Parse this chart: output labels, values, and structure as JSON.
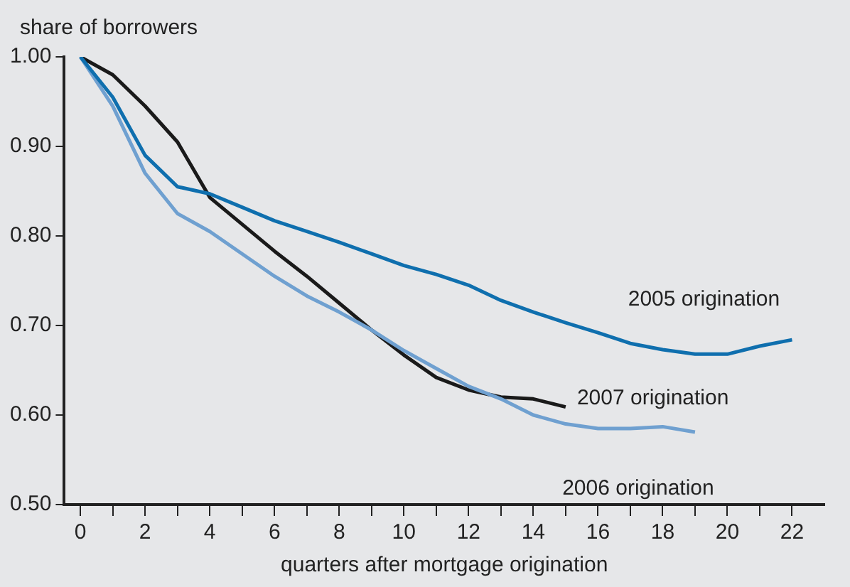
{
  "chart_data": {
    "type": "line",
    "ylabel": "share of borrowers",
    "xlabel": "quarters after mortgage origination",
    "xlim": [
      -0.5,
      23
    ],
    "ylim": [
      0.5,
      1.0
    ],
    "xticks": [
      0,
      {
        "value": 1,
        "label": null
      },
      2,
      {
        "value": 3,
        "label": null
      },
      4,
      {
        "value": 5,
        "label": null
      },
      6,
      {
        "value": 7,
        "label": null
      },
      8,
      {
        "value": 9,
        "label": null
      },
      10,
      {
        "value": 11,
        "label": null
      },
      12,
      {
        "value": 13,
        "label": null
      },
      14,
      {
        "value": 15,
        "label": null
      },
      16,
      {
        "value": 17,
        "label": null
      },
      18,
      {
        "value": 19,
        "label": null
      },
      20,
      {
        "value": 21,
        "label": null
      },
      22
    ],
    "yticks": [
      {
        "value": 0.5,
        "label": "0.50"
      },
      {
        "value": 0.6,
        "label": "0.60"
      },
      {
        "value": 0.7,
        "label": "0.70"
      },
      {
        "value": 0.8,
        "label": "0.80"
      },
      {
        "value": 0.9,
        "label": "0.90"
      },
      {
        "value": 1.0,
        "label": "1.00"
      }
    ],
    "grid": false,
    "legend": false,
    "marker": "none",
    "line_style": "solid",
    "series": [
      {
        "name": "2005 origination",
        "color": "#0f6fae",
        "x": [
          0,
          1,
          2,
          3,
          4,
          5,
          6,
          7,
          8,
          9,
          10,
          11,
          12,
          13,
          14,
          15,
          16,
          17,
          18,
          19,
          20,
          21,
          22
        ],
        "values": [
          1.0,
          0.955,
          0.89,
          0.855,
          0.847,
          0.832,
          0.817,
          0.805,
          0.793,
          0.78,
          0.767,
          0.757,
          0.745,
          0.728,
          0.715,
          0.703,
          0.692,
          0.68,
          0.673,
          0.668,
          0.668,
          0.677,
          0.684
        ]
      },
      {
        "name": "2006 origination",
        "color": "#6fa0d0",
        "x": [
          0,
          1,
          2,
          3,
          4,
          5,
          6,
          7,
          8,
          9,
          10,
          11,
          12,
          13,
          14,
          15,
          16,
          17,
          18,
          19
        ],
        "values": [
          1.0,
          0.945,
          0.87,
          0.825,
          0.805,
          0.78,
          0.755,
          0.733,
          0.715,
          0.695,
          0.672,
          0.652,
          0.632,
          0.618,
          0.6,
          0.59,
          0.585,
          0.585,
          0.587,
          0.581
        ]
      },
      {
        "name": "2007 origination",
        "color": "#1a1a1a",
        "x": [
          0,
          1,
          2,
          3,
          4,
          5,
          6,
          7,
          8,
          9,
          10,
          11,
          12,
          13,
          14,
          15
        ],
        "values": [
          1.0,
          0.98,
          0.945,
          0.905,
          0.843,
          0.813,
          0.783,
          0.755,
          0.725,
          0.695,
          0.667,
          0.642,
          0.628,
          0.62,
          0.618,
          0.609
        ]
      }
    ]
  }
}
